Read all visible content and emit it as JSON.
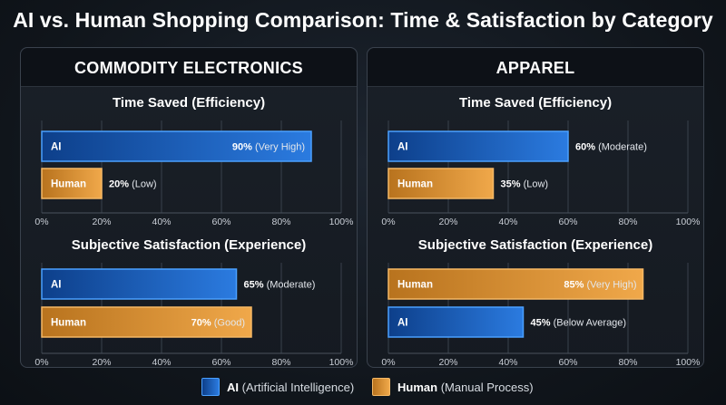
{
  "title": "AI vs. Human Shopping Comparison: Time & Satisfaction by Category",
  "colors": {
    "ai_dark": "#0d3f8a",
    "ai_light": "#2b7be0",
    "ai_border": "#4aa0ff",
    "human_dark": "#b8731e",
    "human_light": "#f0a84a",
    "human_border": "#f5b865",
    "background": "#10151b"
  },
  "legend": {
    "ai_bold": "AI",
    "ai_rest": "(Artificial Intelligence)",
    "human_bold": "Human",
    "human_rest": "(Manual Process)"
  },
  "panels": [
    {
      "title": "COMMODITY ELECTRONICS"
    },
    {
      "title": "APPAREL"
    }
  ],
  "chart_data": [
    {
      "type": "bar",
      "panel": "COMMODITY ELECTRONICS",
      "title": "Time Saved (Efficiency)",
      "xlim": [
        0,
        100
      ],
      "x_ticks": [
        "0%",
        "20%",
        "40%",
        "60%",
        "80%",
        "100%"
      ],
      "grid": true,
      "bars": [
        {
          "label": "AI",
          "series": "ai",
          "value": 90,
          "value_text": "90%",
          "qualifier": "(Very High)"
        },
        {
          "label": "Human",
          "series": "human",
          "value": 20,
          "value_text": "20%",
          "qualifier": "(Low)"
        }
      ]
    },
    {
      "type": "bar",
      "panel": "COMMODITY ELECTRONICS",
      "title": "Subjective Satisfaction (Experience)",
      "xlim": [
        0,
        100
      ],
      "x_ticks": [
        "0%",
        "20%",
        "40%",
        "60%",
        "80%",
        "100%"
      ],
      "grid": true,
      "bars": [
        {
          "label": "AI",
          "series": "ai",
          "value": 65,
          "value_text": "65%",
          "qualifier": "(Moderate)"
        },
        {
          "label": "Human",
          "series": "human",
          "value": 70,
          "value_text": "70%",
          "qualifier": "(Good)"
        }
      ]
    },
    {
      "type": "bar",
      "panel": "APPAREL",
      "title": "Time Saved (Efficiency)",
      "xlim": [
        0,
        100
      ],
      "x_ticks": [
        "0%",
        "20%",
        "40%",
        "60%",
        "80%",
        "100%"
      ],
      "grid": true,
      "bars": [
        {
          "label": "AI",
          "series": "ai",
          "value": 60,
          "value_text": "60%",
          "qualifier": "(Moderate)"
        },
        {
          "label": "Human",
          "series": "human",
          "value": 35,
          "value_text": "35%",
          "qualifier": "(Low)"
        }
      ]
    },
    {
      "type": "bar",
      "panel": "APPAREL",
      "title": "Subjective Satisfaction (Experience)",
      "xlim": [
        0,
        100
      ],
      "x_ticks": [
        "0%",
        "20%",
        "40%",
        "60%",
        "80%",
        "100%"
      ],
      "grid": true,
      "bars": [
        {
          "label": "Human",
          "series": "human",
          "value": 85,
          "value_text": "85%",
          "qualifier": "(Very High)"
        },
        {
          "label": "AI",
          "series": "ai",
          "value": 45,
          "value_text": "45%",
          "qualifier": "(Below Average)"
        }
      ]
    }
  ]
}
